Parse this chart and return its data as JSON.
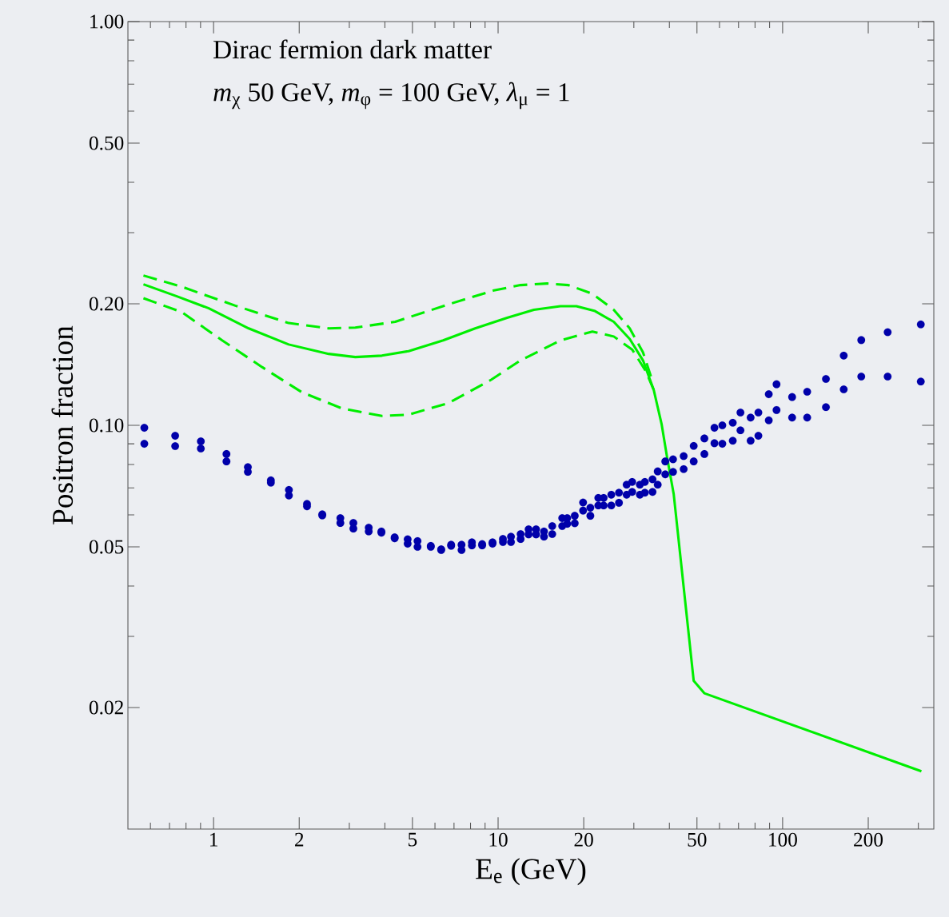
{
  "chart_data": {
    "type": "line",
    "title": "Dirac fermion dark matter",
    "subtitle": "*m*$_{χ}$ 50 GeV, *m*$_{φ}$ = 100 GeV, *λ*$_{μ}$ = 1",
    "xlabel": "E$_{e}$ (GeV)",
    "ylabel": "Positron fraction",
    "log": "xy",
    "xlim": [
      0.5,
      340
    ],
    "ylim": [
      0.01,
      1
    ],
    "xticks": [
      {
        "value": 0.6,
        "label": null
      },
      {
        "value": 0.7,
        "label": null
      },
      {
        "value": 0.8,
        "label": null
      },
      {
        "value": 0.9,
        "label": null
      },
      1,
      2,
      {
        "value": 3,
        "label": null
      },
      {
        "value": 4,
        "label": null
      },
      5,
      {
        "value": 6,
        "label": null
      },
      {
        "value": 7,
        "label": null
      },
      {
        "value": 8,
        "label": null
      },
      {
        "value": 9,
        "label": null
      },
      10,
      20,
      {
        "value": 30,
        "label": null
      },
      {
        "value": 40,
        "label": null
      },
      50,
      {
        "value": 60,
        "label": null
      },
      {
        "value": 70,
        "label": null
      },
      {
        "value": 80,
        "label": null
      },
      {
        "value": 90,
        "label": null
      },
      100,
      200,
      {
        "value": 300,
        "label": null
      }
    ],
    "yticks": [
      {
        "value": 0.03,
        "label": null
      },
      {
        "value": 0.04,
        "label": null
      },
      {
        "value": 0.06,
        "label": null
      },
      {
        "value": 0.07,
        "label": null
      },
      {
        "value": 0.08,
        "label": null
      },
      {
        "value": 0.09,
        "label": null
      },
      {
        "value": 0.3,
        "label": null
      },
      {
        "value": 0.4,
        "label": null
      },
      {
        "value": 0.6,
        "label": null
      },
      {
        "value": 0.7,
        "label": null
      },
      {
        "value": 0.8,
        "label": null
      },
      {
        "value": 0.9,
        "label": null
      },
      0.02,
      0.05,
      {
        "value": 0.1,
        "label": "0.10"
      },
      {
        "value": 0.2,
        "label": "0.20"
      },
      {
        "value": 0.5,
        "label": "0.50"
      },
      {
        "value": 1,
        "label": "1.00"
      }
    ],
    "series": [
      {
        "color": "#00ee00",
        "line_style": "solid",
        "x": [
          0.567,
          0.743,
          0.962,
          1.329,
          1.837,
          2.538,
          3.148,
          3.907,
          4.847,
          6.412,
          8.306,
          10.76,
          13.36,
          16.56,
          18.85,
          21.91,
          25.5,
          29.02,
          32.31,
          35.24,
          37.58,
          39.22,
          41.42,
          48.69,
          53.05,
          307.5
        ],
        "values": [
          0.2235,
          0.2087,
          0.1949,
          0.1738,
          0.1586,
          0.1503,
          0.1476,
          0.1488,
          0.1527,
          0.1623,
          0.1738,
          0.1847,
          0.1933,
          0.1973,
          0.1973,
          0.1919,
          0.1805,
          0.1636,
          0.1448,
          0.1224,
          0.1005,
          0.0837,
          0.0676,
          0.0233,
          0.0217,
          0.0139
        ]
      },
      {
        "color": "#00ee00",
        "line_style": "dashed",
        "x": [
          0.567,
          0.776,
          1.193,
          1.837,
          2.538,
          3.148,
          4.35,
          6.695,
          9.663,
          11.99,
          14.87,
          17.67,
          21.45,
          25.5,
          29.02,
          32.31,
          34.47
        ],
        "values": [
          0.235,
          0.2202,
          0.1979,
          0.1792,
          0.1738,
          0.1746,
          0.1805,
          0.1994,
          0.2158,
          0.2225,
          0.2245,
          0.2225,
          0.2118,
          0.1933,
          0.1738,
          0.1516,
          0.1321
        ]
      },
      {
        "color": "#00ee00",
        "line_style": "dashed",
        "x": [
          0.567,
          0.776,
          1.072,
          1.481,
          2.046,
          2.828,
          3.907,
          4.847,
          6.695,
          9.454,
          11.99,
          16.56,
          21.45,
          25.5,
          29.65,
          33.03,
          35.24
        ],
        "values": [
          0.2065,
          0.1905,
          0.1623,
          0.1394,
          0.1207,
          0.1101,
          0.1055,
          0.1063,
          0.1135,
          0.1297,
          0.1448,
          0.1623,
          0.1707,
          0.166,
          0.1538,
          0.1363,
          0.1224
        ]
      },
      {
        "type": "scatter",
        "color": "#0000aa",
        "x": [
          0.571,
          0.733,
          0.902,
          1.11,
          1.32,
          1.59,
          1.84,
          2.13,
          2.41,
          2.79,
          3.1,
          3.51,
          3.89,
          4.33,
          4.81,
          5.21,
          5.8,
          6.31,
          6.84,
          7.44,
          8.09,
          8.79,
          9.56,
          10.4,
          11.1,
          12.0,
          12.8,
          13.6,
          14.5,
          15.5,
          16.8,
          17.5,
          18.6,
          19.9,
          21.1,
          22.5,
          23.5,
          25.0,
          26.6,
          28.3,
          29.6,
          31.5,
          32.8,
          34.9,
          36.4,
          38.7,
          41.2,
          44.9,
          48.7,
          53.1,
          57.6,
          61.4,
          66.8,
          71.1,
          77.2,
          82.2,
          89.4,
          95.2,
          108,
          122,
          142,
          164,
          189,
          234,
          306
        ],
        "values": [
          0.0986,
          0.0942,
          0.0913,
          0.0849,
          0.0788,
          0.0731,
          0.0692,
          0.0639,
          0.0602,
          0.0589,
          0.0573,
          0.0558,
          0.0546,
          0.0528,
          0.0522,
          0.0517,
          0.0503,
          0.0493,
          0.0506,
          0.0506,
          0.0513,
          0.0508,
          0.0513,
          0.0523,
          0.053,
          0.0538,
          0.0553,
          0.0553,
          0.0546,
          0.0563,
          0.0589,
          0.0589,
          0.0597,
          0.0644,
          0.0625,
          0.0661,
          0.0661,
          0.0673,
          0.0681,
          0.0713,
          0.0724,
          0.0713,
          0.0724,
          0.0735,
          0.0769,
          0.0814,
          0.0824,
          0.0839,
          0.0889,
          0.0928,
          0.0986,
          0.1,
          0.1015,
          0.1076,
          0.1045,
          0.1076,
          0.1194,
          0.1264,
          0.1175,
          0.1211,
          0.1303,
          0.1488,
          0.1626,
          0.1701,
          0.1778
        ]
      },
      {
        "type": "scatter",
        "color": "#0000aa",
        "x": [
          0.571,
          0.733,
          0.902,
          1.11,
          1.32,
          1.59,
          1.84,
          2.13,
          2.41,
          2.79,
          3.1,
          3.51,
          3.89,
          4.33,
          4.81,
          5.21,
          5.8,
          6.31,
          6.84,
          7.44,
          8.09,
          8.79,
          9.56,
          10.4,
          11.1,
          12.0,
          12.8,
          13.6,
          14.5,
          15.5,
          16.8,
          17.5,
          18.6,
          19.9,
          21.1,
          22.5,
          23.5,
          25.0,
          26.6,
          28.3,
          29.6,
          31.5,
          32.8,
          34.9,
          36.4,
          38.7,
          41.2,
          44.9,
          48.7,
          53.1,
          57.6,
          61.4,
          66.8,
          71.1,
          77.2,
          82.2,
          89.4,
          95.2,
          108,
          122,
          142,
          164,
          189,
          234,
          306
        ],
        "values": [
          0.09,
          0.0888,
          0.0876,
          0.0814,
          0.0767,
          0.0721,
          0.067,
          0.063,
          0.0598,
          0.0573,
          0.0555,
          0.0546,
          0.0542,
          0.0525,
          0.0509,
          0.05,
          0.05,
          0.0491,
          0.0503,
          0.0491,
          0.0504,
          0.0504,
          0.0509,
          0.0514,
          0.0514,
          0.0523,
          0.0537,
          0.0537,
          0.053,
          0.0538,
          0.0563,
          0.057,
          0.0572,
          0.0615,
          0.0597,
          0.0633,
          0.0633,
          0.0633,
          0.0643,
          0.0673,
          0.0684,
          0.0673,
          0.0681,
          0.0684,
          0.0713,
          0.0756,
          0.0767,
          0.0779,
          0.0814,
          0.0849,
          0.0903,
          0.09,
          0.0916,
          0.0972,
          0.0916,
          0.0942,
          0.1029,
          0.1091,
          0.1045,
          0.1045,
          0.1109,
          0.1228,
          0.1321,
          0.1321,
          0.1284
        ]
      }
    ]
  }
}
